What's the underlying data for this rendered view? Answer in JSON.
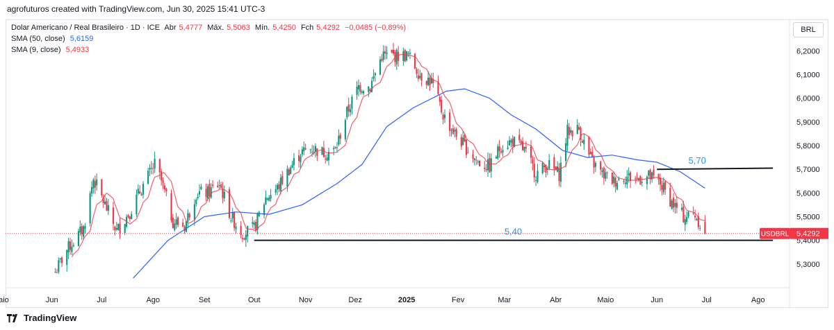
{
  "header": "agrofuturos created with TradingView.com, Jun 30, 2025 15:41 UTC-3",
  "legend": {
    "title": "Dolar Americano / Real Brasileiro · 1D · ICE",
    "open_label": "Abr",
    "open": "5,4777",
    "high_label": "Máx.",
    "high": "5,5063",
    "low_label": "Mín.",
    "low": "5,4250",
    "close_label": "Fch",
    "close": "5,4292",
    "change": "−0,0485 (−0,89%)",
    "sma50_label": "SMA (50, close)",
    "sma50_value": "5,6159",
    "sma9_label": "SMA (9, close)",
    "sma9_value": "5,4933"
  },
  "currency": "BRL",
  "footer_brand": "TradingView",
  "colors": {
    "up": "#089981",
    "down": "#f23645",
    "sma50": "#2962ff",
    "sma9": "#f23645",
    "annotation": "#2196f3"
  },
  "chart_data": {
    "type": "candlestick",
    "symbol": "USDBRL",
    "last_price": 5.4292,
    "last_price_label": "5,4292",
    "ylim": [
      5.2,
      6.33
    ],
    "y_ticks": [
      5.3,
      5.4,
      5.5,
      5.6,
      5.7,
      5.8,
      5.9,
      6.0,
      6.1,
      6.2
    ],
    "y_tick_labels": [
      "5,3000",
      "5,4000",
      "5,5000",
      "5,6000",
      "5,7000",
      "5,8000",
      "5,9000",
      "6,0000",
      "6,1000",
      "6,2000"
    ],
    "x_tick_labels": [
      "Maio",
      "Jun",
      "Jul",
      "Ago",
      "Set",
      "Out",
      "Nov",
      "Dez",
      "2025",
      "Fev",
      "Mar",
      "Abr",
      "Maio",
      "Jun",
      "Jul",
      "Ago"
    ],
    "x_ticks": [
      "2024-05",
      "2024-06",
      "2024-07",
      "2024-08",
      "2024-09",
      "2024-10",
      "2024-11",
      "2024-12",
      "2025-01",
      "2025-02",
      "2025-03",
      "2025-04",
      "2025-05",
      "2025-06",
      "2025-07",
      "2025-08"
    ],
    "xlim": [
      "2024-05-04",
      "2025-08-20"
    ],
    "close_path": [
      [
        "2024-06-01",
        5.24
      ],
      [
        "2024-06-10",
        5.36
      ],
      [
        "2024-06-20",
        5.45
      ],
      [
        "2024-06-26",
        5.66
      ],
      [
        "2024-07-03",
        5.55
      ],
      [
        "2024-07-10",
        5.44
      ],
      [
        "2024-07-18",
        5.52
      ],
      [
        "2024-07-25",
        5.62
      ],
      [
        "2024-08-02",
        5.72
      ],
      [
        "2024-08-06",
        5.65
      ],
      [
        "2024-08-13",
        5.48
      ],
      [
        "2024-08-20",
        5.46
      ],
      [
        "2024-08-27",
        5.6
      ],
      [
        "2024-09-03",
        5.6
      ],
      [
        "2024-09-10",
        5.64
      ],
      [
        "2024-09-17",
        5.5
      ],
      [
        "2024-09-24",
        5.43
      ],
      [
        "2024-10-01",
        5.45
      ],
      [
        "2024-10-08",
        5.58
      ],
      [
        "2024-10-15",
        5.62
      ],
      [
        "2024-10-22",
        5.7
      ],
      [
        "2024-10-29",
        5.77
      ],
      [
        "2024-11-05",
        5.79
      ],
      [
        "2024-11-12",
        5.77
      ],
      [
        "2024-11-19",
        5.78
      ],
      [
        "2024-11-26",
        5.94
      ],
      [
        "2024-12-03",
        6.05
      ],
      [
        "2024-12-10",
        6.05
      ],
      [
        "2024-12-17",
        6.18
      ],
      [
        "2024-12-23",
        6.18
      ],
      [
        "2025-01-02",
        6.18
      ],
      [
        "2025-01-09",
        6.1
      ],
      [
        "2025-01-16",
        6.07
      ],
      [
        "2025-01-23",
        5.93
      ],
      [
        "2025-01-30",
        5.85
      ],
      [
        "2025-02-06",
        5.79
      ],
      [
        "2025-02-13",
        5.73
      ],
      [
        "2025-02-20",
        5.71
      ],
      [
        "2025-02-27",
        5.8
      ],
      [
        "2025-03-06",
        5.82
      ],
      [
        "2025-03-13",
        5.78
      ],
      [
        "2025-03-20",
        5.68
      ],
      [
        "2025-03-27",
        5.72
      ],
      [
        "2025-04-03",
        5.68
      ],
      [
        "2025-04-08",
        5.86
      ],
      [
        "2025-04-15",
        5.87
      ],
      [
        "2025-04-22",
        5.74
      ],
      [
        "2025-04-29",
        5.68
      ],
      [
        "2025-05-06",
        5.65
      ],
      [
        "2025-05-13",
        5.67
      ],
      [
        "2025-05-20",
        5.66
      ],
      [
        "2025-05-27",
        5.67
      ],
      [
        "2025-06-03",
        5.64
      ],
      [
        "2025-06-10",
        5.56
      ],
      [
        "2025-06-17",
        5.5
      ],
      [
        "2025-06-24",
        5.51
      ],
      [
        "2025-06-30",
        5.43
      ]
    ],
    "sma50_path": [
      [
        "2024-07-20",
        5.24
      ],
      [
        "2024-08-10",
        5.4
      ],
      [
        "2024-09-01",
        5.5
      ],
      [
        "2024-09-20",
        5.52
      ],
      [
        "2024-10-10",
        5.51
      ],
      [
        "2024-10-30",
        5.55
      ],
      [
        "2024-11-20",
        5.64
      ],
      [
        "2024-12-05",
        5.72
      ],
      [
        "2024-12-20",
        5.88
      ],
      [
        "2025-01-05",
        5.96
      ],
      [
        "2025-01-25",
        6.03
      ],
      [
        "2025-02-05",
        6.04
      ],
      [
        "2025-02-20",
        6.0
      ],
      [
        "2025-03-05",
        5.93
      ],
      [
        "2025-03-20",
        5.87
      ],
      [
        "2025-04-05",
        5.78
      ],
      [
        "2025-04-20",
        5.75
      ],
      [
        "2025-05-05",
        5.76
      ],
      [
        "2025-05-20",
        5.74
      ],
      [
        "2025-06-01",
        5.73
      ],
      [
        "2025-06-15",
        5.69
      ],
      [
        "2025-06-30",
        5.62
      ]
    ],
    "levels": [
      {
        "label": "5,70",
        "value": 5.7,
        "from": "2025-06-01",
        "to": "2025-08-10",
        "y_end": 5.705
      },
      {
        "label": "5,40",
        "value": 5.4,
        "from": "2024-10-01",
        "to": "2025-08-10",
        "y_end": 5.4
      }
    ]
  }
}
